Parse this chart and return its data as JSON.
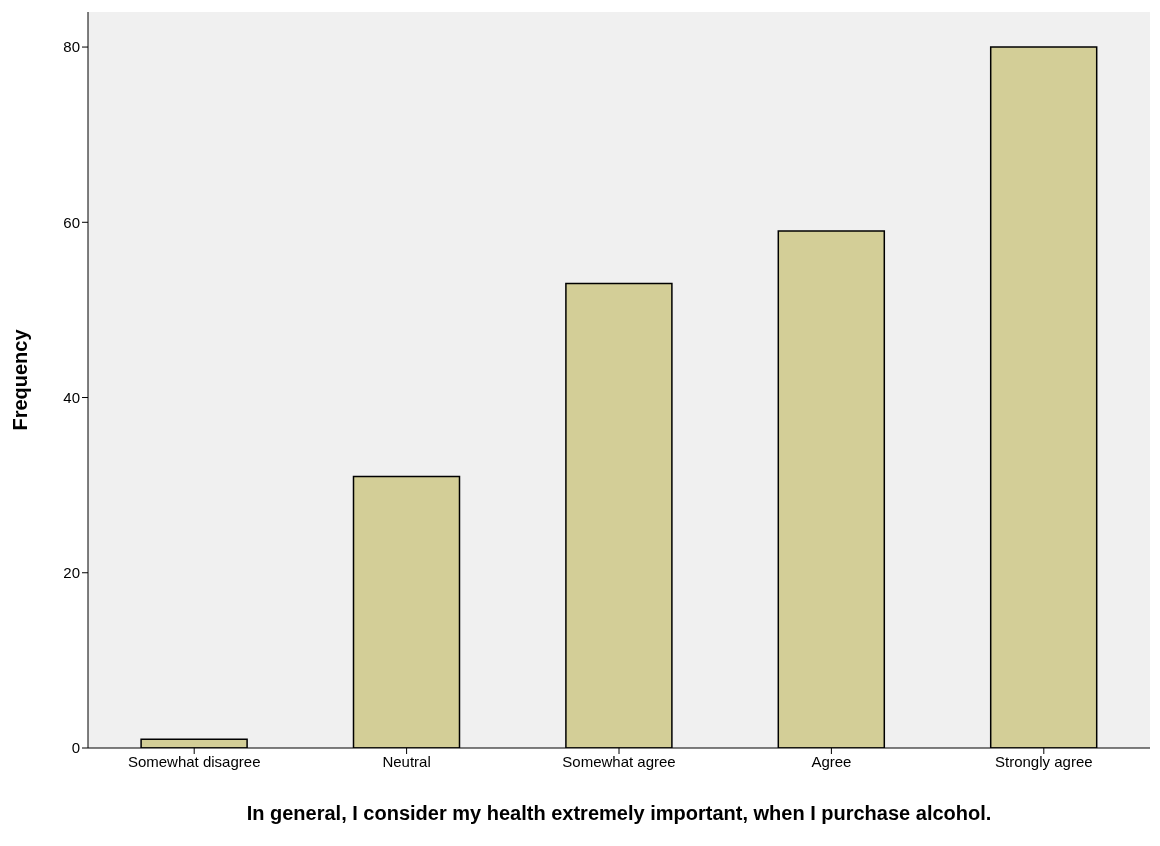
{
  "chart_data": {
    "type": "bar",
    "xlabel": "In general, I consider my health extremely important, when I purchase alcohol.",
    "ylabel": "Frequency",
    "categories": [
      "Somewhat disagree",
      "Neutral",
      "Somewhat agree",
      "Agree",
      "Strongly agree"
    ],
    "values": [
      1,
      31,
      53,
      59,
      80
    ],
    "color": "#d3ce97",
    "ylim": [
      0,
      84
    ],
    "yticks": [
      0,
      20,
      40,
      60,
      80
    ]
  }
}
